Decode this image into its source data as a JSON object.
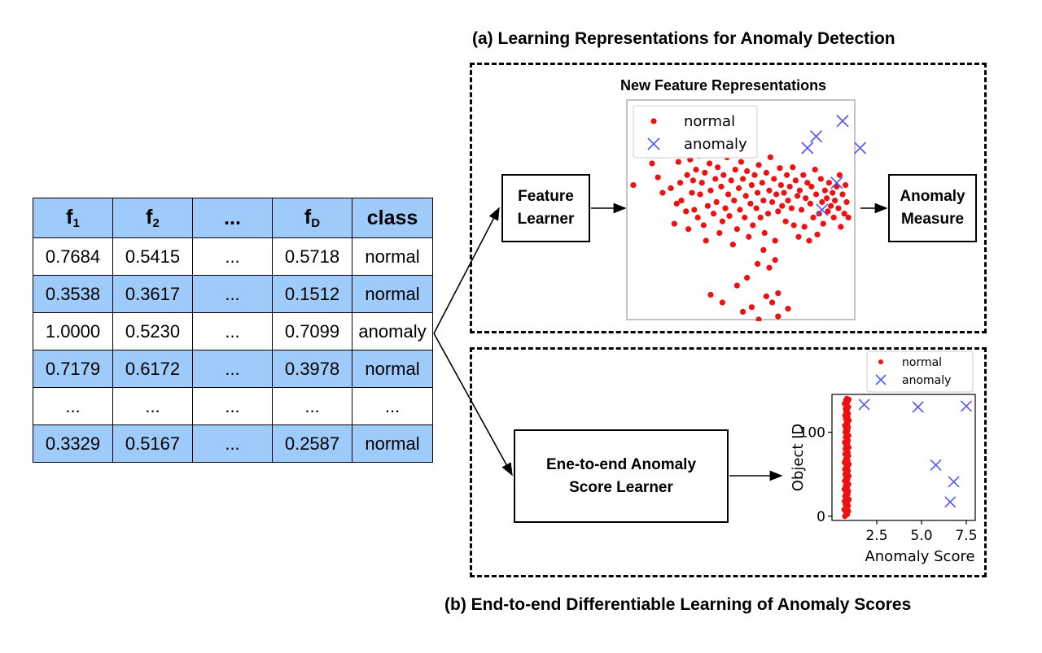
{
  "table": {
    "headers": [
      {
        "main": "f",
        "sub": "1"
      },
      {
        "main": "f",
        "sub": "2"
      },
      {
        "main": "...",
        "sub": ""
      },
      {
        "main": "f",
        "sub": "D"
      },
      {
        "main": "class",
        "sub": ""
      }
    ],
    "rows": [
      [
        "0.7684",
        "0.5415",
        "...",
        "0.5718",
        "normal"
      ],
      [
        "0.3538",
        "0.3617",
        "...",
        "0.1512",
        "normal"
      ],
      [
        "1.0000",
        "0.5230",
        "...",
        "0.7099",
        "anomaly"
      ],
      [
        "0.7179",
        "0.6172",
        "...",
        "0.3978",
        "normal"
      ],
      [
        "...",
        "...",
        "...",
        "...",
        "..."
      ],
      [
        "0.3329",
        "0.5167",
        "...",
        "0.2587",
        "normal"
      ]
    ],
    "row_fill": [
      "white",
      "blue",
      "white",
      "blue",
      "white",
      "blue"
    ],
    "header_color": "#9ecbfa"
  },
  "section_a": {
    "title": "(a) Learning Representations for Anomaly Detection",
    "feature_learner": [
      "Feature",
      "Learner"
    ],
    "anomaly_measure": [
      "Anomaly",
      "Measure"
    ],
    "plot_title": "New Feature Representations"
  },
  "section_b": {
    "title": "(b) End-to-end Differentiable Learning of Anomaly Scores",
    "score_learner": [
      "Ene-to-end Anomaly",
      "Score Learner"
    ]
  },
  "chart_data": [
    {
      "type": "scatter",
      "title": "New Feature Representations",
      "xlabel": "",
      "ylabel": "",
      "axes_ticks": "none",
      "legend": "top-left",
      "series": [
        {
          "name": "normal",
          "marker": "dot",
          "color": "#ee1111",
          "points": [
            [
              18,
              108
            ],
            [
              50,
              80
            ],
            [
              55,
              60
            ],
            [
              60,
              98
            ],
            [
              68,
              118
            ],
            [
              75,
              68
            ],
            [
              82,
              112
            ],
            [
              88,
              158
            ],
            [
              92,
              132
            ],
            [
              95,
              78
            ],
            [
              98,
              105
            ],
            [
              100,
              128
            ],
            [
              102,
              60
            ],
            [
              108,
              142
            ],
            [
              110,
              95
            ],
            [
              112,
              165
            ],
            [
              115,
              75
            ],
            [
              118,
              118
            ],
            [
              120,
              102
            ],
            [
              122,
              140
            ],
            [
              125,
              88
            ],
            [
              128,
              150
            ],
            [
              130,
              70
            ],
            [
              132,
              120
            ],
            [
              135,
              105
            ],
            [
              138,
              160
            ],
            [
              140,
              92
            ],
            [
              142,
              180
            ],
            [
              145,
              135
            ],
            [
              148,
              80
            ],
            [
              150,
              115
            ],
            [
              152,
              62
            ],
            [
              155,
              145
            ],
            [
              158,
              100
            ],
            [
              160,
              130
            ],
            [
              162,
              85
            ],
            [
              165,
              170
            ],
            [
              168,
              110
            ],
            [
              170,
              155
            ],
            [
              172,
              95
            ],
            [
              175,
              138
            ],
            [
              178,
              72
            ],
            [
              180,
              120
            ],
            [
              182,
              148
            ],
            [
              185,
              102
            ],
            [
              188,
              185
            ],
            [
              190,
              128
            ],
            [
              192,
              88
            ],
            [
              195,
              165
            ],
            [
              198,
              112
            ],
            [
              200,
              140
            ],
            [
              202,
              78
            ],
            [
              205,
              100
            ],
            [
              208,
              150
            ],
            [
              210,
              122
            ],
            [
              212,
              90
            ],
            [
              215,
              175
            ],
            [
              218,
              132
            ],
            [
              220,
              108
            ],
            [
              222,
              160
            ],
            [
              225,
              95
            ],
            [
              228,
              138
            ],
            [
              230,
              118
            ],
            [
              232,
              82
            ],
            [
              235,
              150
            ],
            [
              238,
              105
            ],
            [
              240,
              128
            ],
            [
              242,
              170
            ],
            [
              245,
              92
            ],
            [
              248,
              145
            ],
            [
              250,
              115
            ],
            [
              252,
              72
            ],
            [
              255,
              130
            ],
            [
              258,
              100
            ],
            [
              260,
              180
            ],
            [
              262,
              120
            ],
            [
              265,
              142
            ],
            [
              268,
              86
            ],
            [
              270,
              108
            ],
            [
              272,
              135
            ],
            [
              275,
              118
            ],
            [
              278,
              155
            ],
            [
              280,
              95
            ],
            [
              282,
              128
            ],
            [
              285,
              110
            ],
            [
              288,
              138
            ],
            [
              290,
              85
            ],
            [
              292,
              160
            ],
            [
              295,
              102
            ],
            [
              298,
              122
            ],
            [
              300,
              175
            ],
            [
              302,
              115
            ],
            [
              305,
              140
            ],
            [
              308,
              95
            ],
            [
              310,
              162
            ],
            [
              312,
              125
            ],
            [
              315,
              105
            ],
            [
              318,
              180
            ],
            [
              320,
              132
            ],
            [
              322,
              110
            ],
            [
              325,
              150
            ],
            [
              328,
              88
            ],
            [
              330,
              120
            ],
            [
              332,
              172
            ],
            [
              335,
              145
            ],
            [
              338,
              100
            ],
            [
              340,
              130
            ],
            [
              342,
              158
            ],
            [
              345,
              115
            ],
            [
              348,
              125
            ],
            [
              350,
              142
            ],
            [
              352,
              105
            ],
            [
              355,
              135
            ],
            [
              358,
              118
            ],
            [
              360,
              150
            ],
            [
              362,
              128
            ],
            [
              365,
              110
            ],
            [
              368,
              138
            ],
            [
              370,
              95
            ],
            [
              372,
              162
            ],
            [
              375,
              120
            ],
            [
              378,
              145
            ],
            [
              380,
              108
            ],
            [
              382,
              130
            ],
            [
              385,
              150
            ],
            [
              230,
              210
            ],
            [
              240,
              192
            ],
            [
              250,
              215
            ],
            [
              260,
              205
            ],
            [
              212,
              228
            ],
            [
              195,
              238
            ],
            [
              245,
              252
            ],
            [
              255,
              260
            ],
            [
              265,
              248
            ],
            [
              220,
              266
            ],
            [
              205,
              272
            ],
            [
              232,
              282
            ],
            [
              282,
              268
            ],
            [
              265,
              278
            ],
            [
              150,
              250
            ],
            [
              170,
              260
            ],
            [
              115,
              300
            ]
          ]
        },
        {
          "name": "anomaly",
          "marker": "x",
          "color": "#5555ff",
          "points": [
            [
              330,
              45
            ],
            [
              375,
              25
            ],
            [
              405,
              60
            ],
            [
              315,
              60
            ],
            [
              365,
              105
            ],
            [
              340,
              140
            ]
          ]
        }
      ]
    },
    {
      "type": "scatter",
      "title": "",
      "xlabel": "Anomaly Score",
      "ylabel": "Object ID",
      "xlim": [
        0,
        8
      ],
      "ylim": [
        -5,
        145
      ],
      "xticks": [
        "2.5",
        "5.0",
        "7.5"
      ],
      "yticks": [
        "0",
        "100"
      ],
      "legend": "top-right",
      "series": [
        {
          "name": "normal",
          "marker": "dot",
          "color": "#ee1111",
          "points": [
            [
              0.72,
              0
            ],
            [
              0.85,
              2
            ],
            [
              0.78,
              4
            ],
            [
              0.92,
              6
            ],
            [
              0.68,
              8
            ],
            [
              0.81,
              10
            ],
            [
              0.9,
              12
            ],
            [
              0.75,
              14
            ],
            [
              0.86,
              16
            ],
            [
              0.7,
              18
            ],
            [
              0.95,
              20
            ],
            [
              0.8,
              22
            ],
            [
              0.73,
              24
            ],
            [
              0.88,
              26
            ],
            [
              0.79,
              28
            ],
            [
              0.91,
              30
            ],
            [
              0.69,
              32
            ],
            [
              0.84,
              34
            ],
            [
              0.76,
              36
            ],
            [
              0.93,
              38
            ],
            [
              0.82,
              40
            ],
            [
              0.71,
              42
            ],
            [
              0.87,
              44
            ],
            [
              0.78,
              46
            ],
            [
              0.94,
              48
            ],
            [
              0.74,
              50
            ],
            [
              0.83,
              52
            ],
            [
              0.9,
              54
            ],
            [
              0.72,
              56
            ],
            [
              0.86,
              58
            ],
            [
              0.8,
              60
            ],
            [
              0.95,
              62
            ],
            [
              0.7,
              64
            ],
            [
              0.88,
              66
            ],
            [
              0.77,
              68
            ],
            [
              0.84,
              70
            ],
            [
              0.92,
              72
            ],
            [
              0.73,
              74
            ],
            [
              0.89,
              76
            ],
            [
              0.81,
              78
            ],
            [
              0.75,
              80
            ],
            [
              0.94,
              82
            ],
            [
              0.79,
              84
            ],
            [
              0.86,
              86
            ],
            [
              0.71,
              88
            ],
            [
              0.9,
              90
            ],
            [
              0.83,
              92
            ],
            [
              0.76,
              94
            ],
            [
              0.93,
              96
            ],
            [
              0.8,
              98
            ],
            [
              0.74,
              100
            ],
            [
              0.87,
              102
            ],
            [
              0.78,
              104
            ],
            [
              0.91,
              106
            ],
            [
              0.72,
              108
            ],
            [
              0.85,
              110
            ],
            [
              0.82,
              112
            ],
            [
              0.95,
              114
            ],
            [
              0.77,
              116
            ],
            [
              0.88,
              118
            ],
            [
              0.73,
              120
            ],
            [
              0.9,
              122
            ],
            [
              0.79,
              124
            ],
            [
              0.84,
              126
            ],
            [
              0.76,
              128
            ],
            [
              0.92,
              130
            ],
            [
              0.81,
              132
            ],
            [
              0.7,
              134
            ],
            [
              0.87,
              136
            ],
            [
              0.78,
              138
            ],
            [
              0.94,
              139
            ],
            [
              0.83,
              140
            ]
          ]
        },
        {
          "name": "anomaly",
          "marker": "x",
          "color": "#5555ff",
          "points": [
            [
              1.8,
              133
            ],
            [
              4.8,
              130
            ],
            [
              7.5,
              131
            ],
            [
              5.8,
              61
            ],
            [
              6.8,
              41
            ],
            [
              6.6,
              17
            ]
          ]
        }
      ]
    }
  ]
}
